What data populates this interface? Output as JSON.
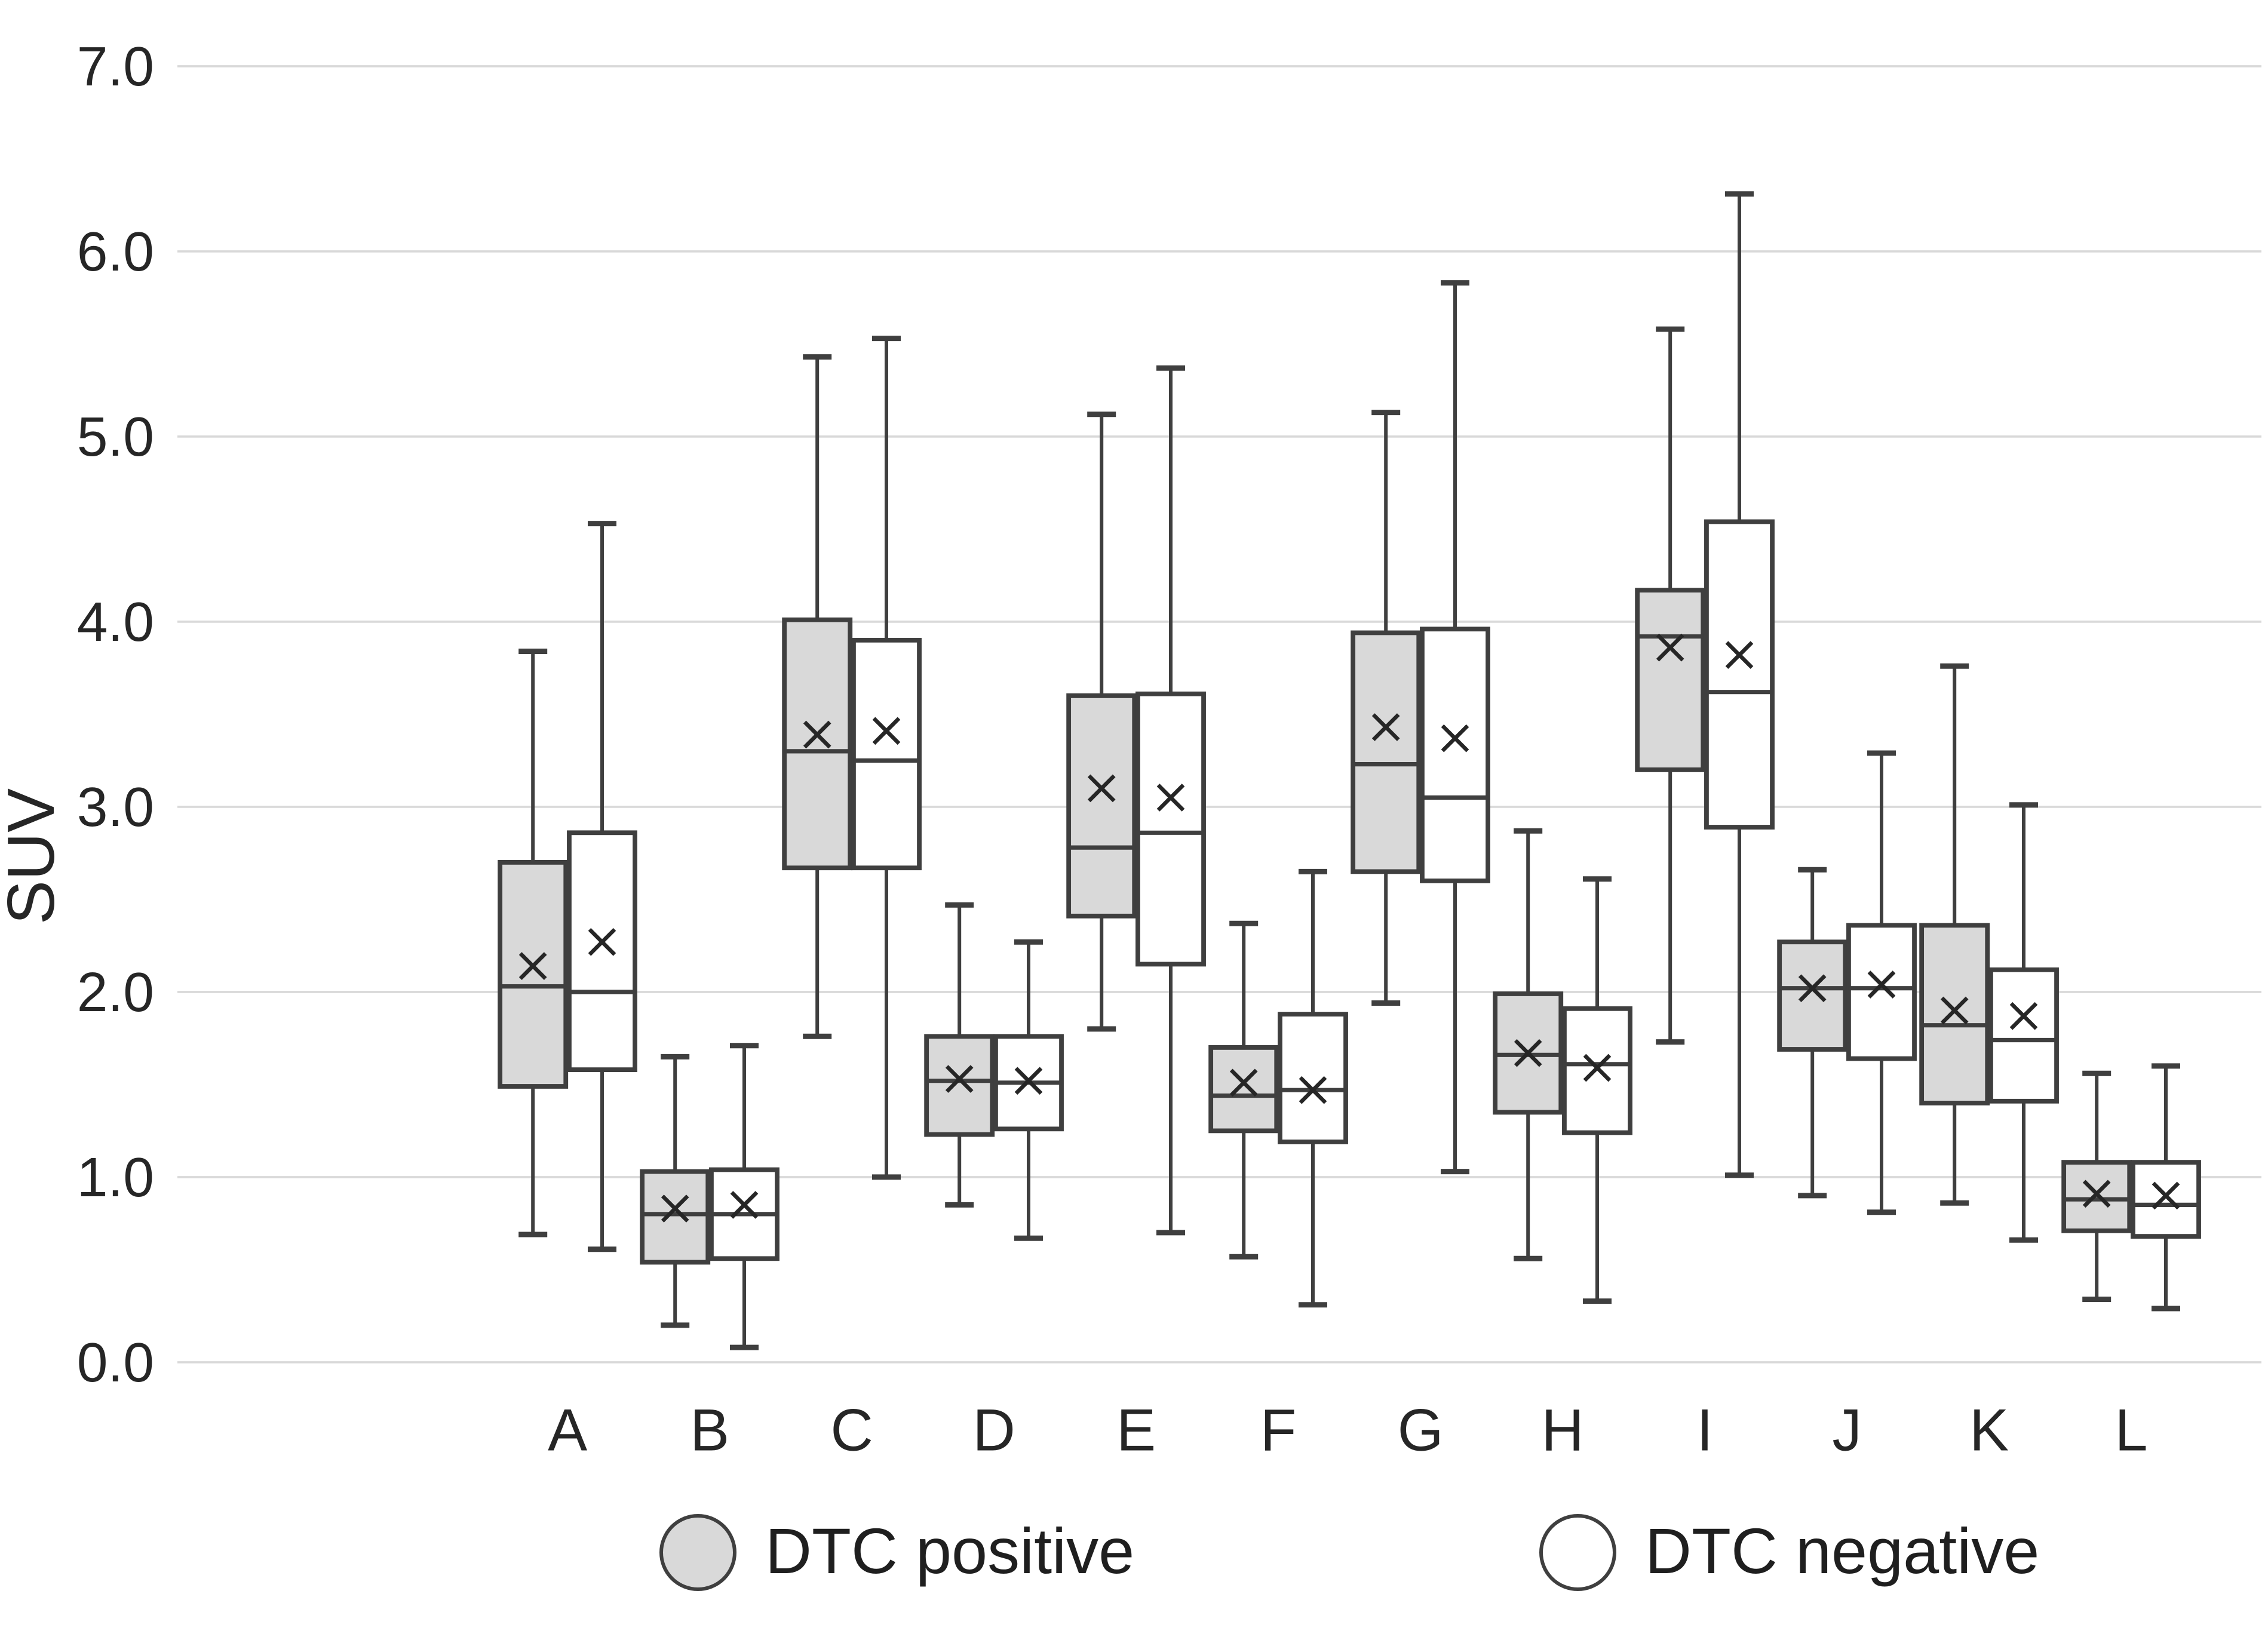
{
  "chart_data": {
    "type": "boxplot",
    "title": "",
    "xlabel": "",
    "ylabel": "SUV",
    "ylim": [
      0.0,
      7.0
    ],
    "ytick_step": 1.0,
    "ytick_labels": [
      "0.0",
      "1.0",
      "2.0",
      "3.0",
      "4.0",
      "5.0",
      "6.0",
      "7.0"
    ],
    "grid": "horizontal-light",
    "legend_position": "bottom",
    "categories": [
      "A",
      "B",
      "C",
      "D",
      "E",
      "F",
      "G",
      "H",
      "I",
      "J",
      "K",
      "L"
    ],
    "series": [
      {
        "name": "DTC positive",
        "fill": "#d9d9d9",
        "marker": "x-mean",
        "values": [
          {
            "category": "A",
            "whisker_low": 0.69,
            "q1": 1.49,
            "median": 2.03,
            "q3": 2.7,
            "whisker_high": 3.84,
            "mean": 2.14
          },
          {
            "category": "B",
            "whisker_low": 0.2,
            "q1": 0.54,
            "median": 0.8,
            "q3": 1.03,
            "whisker_high": 1.65,
            "mean": 0.83
          },
          {
            "category": "C",
            "whisker_low": 1.76,
            "q1": 2.67,
            "median": 3.3,
            "q3": 4.01,
            "whisker_high": 5.43,
            "mean": 3.39
          },
          {
            "category": "D",
            "whisker_low": 0.85,
            "q1": 1.23,
            "median": 1.52,
            "q3": 1.76,
            "whisker_high": 2.47,
            "mean": 1.53
          },
          {
            "category": "E",
            "whisker_low": 1.8,
            "q1": 2.41,
            "median": 2.78,
            "q3": 3.6,
            "whisker_high": 5.12,
            "mean": 3.1
          },
          {
            "category": "F",
            "whisker_low": 0.57,
            "q1": 1.25,
            "median": 1.44,
            "q3": 1.7,
            "whisker_high": 2.37,
            "mean": 1.51
          },
          {
            "category": "G",
            "whisker_low": 1.94,
            "q1": 2.65,
            "median": 3.23,
            "q3": 3.94,
            "whisker_high": 5.13,
            "mean": 3.43
          },
          {
            "category": "H",
            "whisker_low": 0.56,
            "q1": 1.35,
            "median": 1.66,
            "q3": 1.99,
            "whisker_high": 2.87,
            "mean": 1.67
          },
          {
            "category": "I",
            "whisker_low": 1.73,
            "q1": 3.2,
            "median": 3.92,
            "q3": 4.17,
            "whisker_high": 5.58,
            "mean": 3.86
          },
          {
            "category": "J",
            "whisker_low": 0.9,
            "q1": 1.69,
            "median": 2.02,
            "q3": 2.27,
            "whisker_high": 2.66,
            "mean": 2.02
          },
          {
            "category": "K",
            "whisker_low": 0.86,
            "q1": 1.4,
            "median": 1.82,
            "q3": 2.36,
            "whisker_high": 3.76,
            "mean": 1.9
          },
          {
            "category": "L",
            "whisker_low": 0.34,
            "q1": 0.71,
            "median": 0.88,
            "q3": 1.08,
            "whisker_high": 1.56,
            "mean": 0.91
          }
        ]
      },
      {
        "name": "DTC negative",
        "fill": "#ffffff",
        "marker": "x-mean",
        "values": [
          {
            "category": "A",
            "whisker_low": 0.61,
            "q1": 1.58,
            "median": 2.0,
            "q3": 2.86,
            "whisker_high": 4.53,
            "mean": 2.27
          },
          {
            "category": "B",
            "whisker_low": 0.08,
            "q1": 0.56,
            "median": 0.8,
            "q3": 1.04,
            "whisker_high": 1.71,
            "mean": 0.85
          },
          {
            "category": "C",
            "whisker_low": 1.0,
            "q1": 2.67,
            "median": 3.25,
            "q3": 3.9,
            "whisker_high": 5.53,
            "mean": 3.41
          },
          {
            "category": "D",
            "whisker_low": 0.67,
            "q1": 1.26,
            "median": 1.51,
            "q3": 1.76,
            "whisker_high": 2.27,
            "mean": 1.52
          },
          {
            "category": "E",
            "whisker_low": 0.7,
            "q1": 2.15,
            "median": 2.86,
            "q3": 3.61,
            "whisker_high": 5.37,
            "mean": 3.05
          },
          {
            "category": "F",
            "whisker_low": 0.31,
            "q1": 1.19,
            "median": 1.47,
            "q3": 1.88,
            "whisker_high": 2.65,
            "mean": 1.47
          },
          {
            "category": "G",
            "whisker_low": 1.03,
            "q1": 2.6,
            "median": 3.05,
            "q3": 3.96,
            "whisker_high": 5.83,
            "mean": 3.37
          },
          {
            "category": "H",
            "whisker_low": 0.33,
            "q1": 1.24,
            "median": 1.61,
            "q3": 1.91,
            "whisker_high": 2.61,
            "mean": 1.59
          },
          {
            "category": "I",
            "whisker_low": 1.01,
            "q1": 2.89,
            "median": 3.62,
            "q3": 4.54,
            "whisker_high": 6.31,
            "mean": 3.82
          },
          {
            "category": "J",
            "whisker_low": 0.81,
            "q1": 1.64,
            "median": 2.02,
            "q3": 2.36,
            "whisker_high": 3.29,
            "mean": 2.04
          },
          {
            "category": "K",
            "whisker_low": 0.66,
            "q1": 1.41,
            "median": 1.74,
            "q3": 2.12,
            "whisker_high": 3.01,
            "mean": 1.87
          },
          {
            "category": "L",
            "whisker_low": 0.29,
            "q1": 0.68,
            "median": 0.85,
            "q3": 1.08,
            "whisker_high": 1.6,
            "mean": 0.9
          }
        ]
      }
    ]
  },
  "legend": {
    "items": [
      {
        "label": "DTC positive",
        "swatch": "filled-circle"
      },
      {
        "label": "DTC negative",
        "swatch": "open-circle"
      }
    ]
  },
  "colors": {
    "background": "#ffffff",
    "gridline": "#d9d9d9",
    "box_border": "#3f3f3f",
    "whisker": "#3f3f3f",
    "median_line": "#3f3f3f",
    "mean_marker": "#262626",
    "tick_text": "#262626",
    "positive_fill": "#d9d9d9",
    "negative_fill": "#ffffff"
  }
}
